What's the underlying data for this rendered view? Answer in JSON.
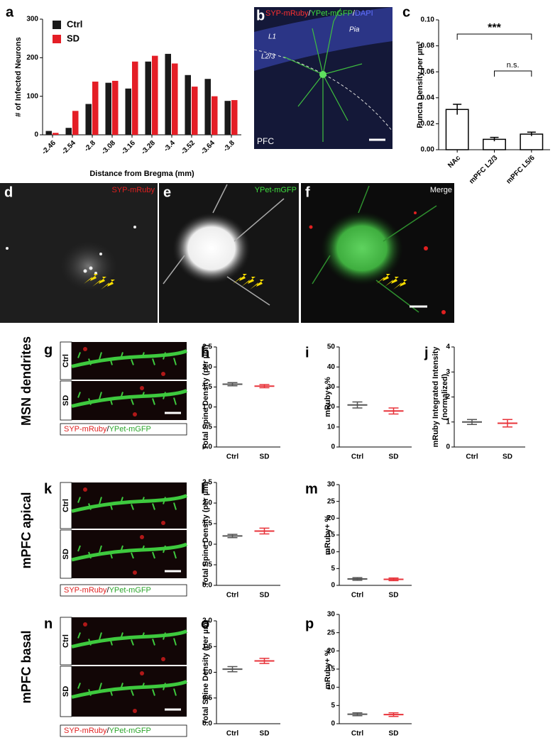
{
  "chart_data": [
    {
      "type": "bar",
      "panel": "a",
      "ylabel": "# of Infected Neurons",
      "xlabel": "Distance from Bregma (mm)",
      "categories": [
        "-2.46",
        "-2.54",
        "-2.8",
        "-3.08",
        "-3.16",
        "-3.28",
        "-3.4",
        "-3.52",
        "-3.64",
        "-3.8"
      ],
      "series": [
        {
          "name": "Ctrl",
          "color": "#1a1a1a",
          "values": [
            10,
            18,
            80,
            135,
            120,
            190,
            210,
            155,
            145,
            88
          ]
        },
        {
          "name": "SD",
          "color": "#e41e26",
          "values": [
            5,
            62,
            138,
            140,
            190,
            205,
            185,
            125,
            100,
            90
          ]
        }
      ],
      "ylim": [
        0,
        300
      ],
      "yticks": [
        0,
        100,
        200,
        300
      ],
      "legend": "top-left"
    },
    {
      "type": "bar",
      "panel": "c",
      "ylabel": "Puncta Density per µm²",
      "categories": [
        "NAc",
        "mPFC L2/3",
        "mPFC L5/6"
      ],
      "values": [
        0.031,
        0.008,
        0.012
      ],
      "errors": [
        0.004,
        0.0015,
        0.0015
      ],
      "color": "#ffffff",
      "ylim": [
        0,
        0.1
      ],
      "yticks": [
        {
          "value": 0,
          "label": "0.00"
        },
        0.02,
        0.04,
        0.06,
        0.08,
        {
          "value": 0.1,
          "label": "0.10"
        }
      ],
      "annotations": [
        "***",
        "n.s."
      ]
    },
    {
      "type": "dotplot",
      "panel": "h",
      "ylabel": "Total Spine Density (per µm)",
      "categories": [
        "Ctrl",
        "SD"
      ],
      "colors": [
        "#555555",
        "#e8333a"
      ],
      "values": [
        1.57,
        1.52
      ],
      "errors": [
        0.04,
        0.04
      ],
      "ylim": [
        0,
        2.5
      ],
      "yticks": [
        {
          "value": 0,
          "label": "0.0"
        },
        0.5,
        {
          "value": 1,
          "label": "1.0"
        },
        1.5,
        {
          "value": 2,
          "label": "2.0"
        },
        2.5
      ]
    },
    {
      "type": "dotplot",
      "panel": "i",
      "ylabel": "mRuby+ %",
      "categories": [
        "Ctrl",
        "SD"
      ],
      "colors": [
        "#555555",
        "#e8333a"
      ],
      "values": [
        21,
        18
      ],
      "errors": [
        1.5,
        1.5
      ],
      "ylim": [
        0,
        50
      ],
      "yticks": [
        0,
        10,
        20,
        30,
        40,
        50
      ]
    },
    {
      "type": "dotplot",
      "panel": "j",
      "ylabel": [
        "mRuby Integrated Intensity",
        "(normalized)"
      ],
      "categories": [
        "Ctrl",
        "SD"
      ],
      "colors": [
        "#555555",
        "#e8333a"
      ],
      "values": [
        1.0,
        0.95
      ],
      "errors": [
        0.1,
        0.15
      ],
      "ylim": [
        0,
        4
      ],
      "yticks": [
        0,
        1,
        2,
        3,
        4
      ]
    },
    {
      "type": "dotplot",
      "panel": "l",
      "ylabel": "Total Spine Density (per µm)",
      "categories": [
        "Ctrl",
        "SD"
      ],
      "colors": [
        "#555555",
        "#e8333a"
      ],
      "values": [
        1.2,
        1.32
      ],
      "errors": [
        0.04,
        0.07
      ],
      "ylim": [
        0,
        2.5
      ],
      "yticks": [
        {
          "value": 0,
          "label": "0.0"
        },
        0.5,
        {
          "value": 1,
          "label": "1.0"
        },
        1.5,
        {
          "value": 2,
          "label": "2.0"
        },
        2.5
      ]
    },
    {
      "type": "dotplot",
      "panel": "m",
      "ylabel": "mRuby+ %",
      "categories": [
        "Ctrl",
        "SD"
      ],
      "colors": [
        "#555555",
        "#e8333a"
      ],
      "values": [
        1.9,
        1.8
      ],
      "errors": [
        0.4,
        0.4
      ],
      "ylim": [
        0,
        30
      ],
      "yticks": [
        0,
        5,
        10,
        15,
        20,
        25,
        30
      ]
    },
    {
      "type": "dotplot",
      "panel": "o",
      "ylabel": "Total Spine Density (per µm)",
      "categories": [
        "Ctrl",
        "SD"
      ],
      "colors": [
        "#555555",
        "#e8333a"
      ],
      "values": [
        1.06,
        1.22
      ],
      "errors": [
        0.05,
        0.05
      ],
      "ylim": [
        0,
        2
      ],
      "yticks": [
        {
          "value": 0,
          "label": "0.0"
        },
        0.5,
        {
          "value": 1,
          "label": "1.0"
        },
        1.5,
        {
          "value": 2,
          "label": "2.0"
        }
      ]
    },
    {
      "type": "dotplot",
      "panel": "p",
      "ylabel": "mRuby+ %",
      "categories": [
        "Ctrl",
        "SD"
      ],
      "colors": [
        "#555555",
        "#e8333a"
      ],
      "values": [
        2.6,
        2.5
      ],
      "errors": [
        0.4,
        0.5
      ],
      "ylim": [
        0,
        30
      ],
      "yticks": [
        0,
        5,
        10,
        15,
        20,
        25,
        30
      ]
    }
  ],
  "micrographs": [
    {
      "panel": "b",
      "labels": [
        "SYP-mRuby",
        "/",
        "YPet-mGFP",
        "/",
        "DAPI"
      ],
      "tags": [
        "Pia",
        "L1",
        "L2/3",
        "PFC"
      ]
    },
    {
      "panel": "d",
      "label": "SYP-mRuby"
    },
    {
      "panel": "e",
      "label": "YPet-mGFP"
    },
    {
      "panel": "f",
      "label": "Merge"
    },
    {
      "panel": "g",
      "row": "MSN dendrites",
      "insets": [
        "Ctrl",
        "SD"
      ],
      "caption": [
        "SYP-mRuby",
        "/",
        "YPet-mGFP"
      ]
    },
    {
      "panel": "k",
      "row": "mPFC apical",
      "insets": [
        "Ctrl",
        "SD"
      ],
      "caption": [
        "SYP-mRuby",
        "/",
        "YPet-mGFP"
      ]
    },
    {
      "panel": "n",
      "row": "mPFC basal",
      "insets": [
        "Ctrl",
        "SD"
      ],
      "caption": [
        "SYP-mRuby",
        "/",
        "YPet-mGFP"
      ]
    }
  ]
}
